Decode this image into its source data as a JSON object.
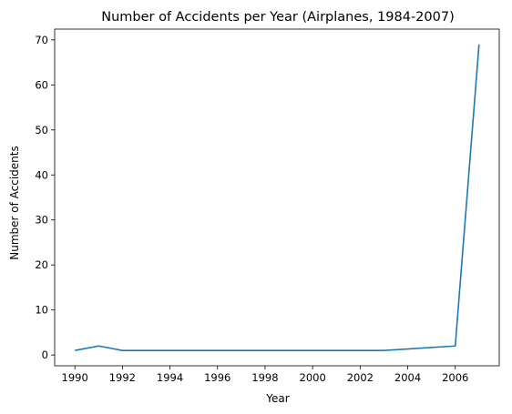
{
  "chart_data": {
    "type": "line",
    "title": "Number of Accidents per Year (Airplanes, 1984-2007)",
    "xlabel": "Year",
    "ylabel": "Number of Accidents",
    "xlim": [
      1989.15,
      2007.85
    ],
    "ylim": [
      -2.4,
      72.4
    ],
    "xticks": [
      1990,
      1992,
      1994,
      1996,
      1998,
      2000,
      2002,
      2004,
      2006
    ],
    "yticks": [
      0,
      10,
      20,
      30,
      40,
      50,
      60,
      70
    ],
    "grid": false,
    "series": [
      {
        "color": "#1f77b4",
        "x": [
          1990,
          1991,
          1992,
          2003,
          2006,
          2007
        ],
        "y": [
          1,
          2,
          1,
          1,
          2,
          69
        ]
      }
    ]
  }
}
